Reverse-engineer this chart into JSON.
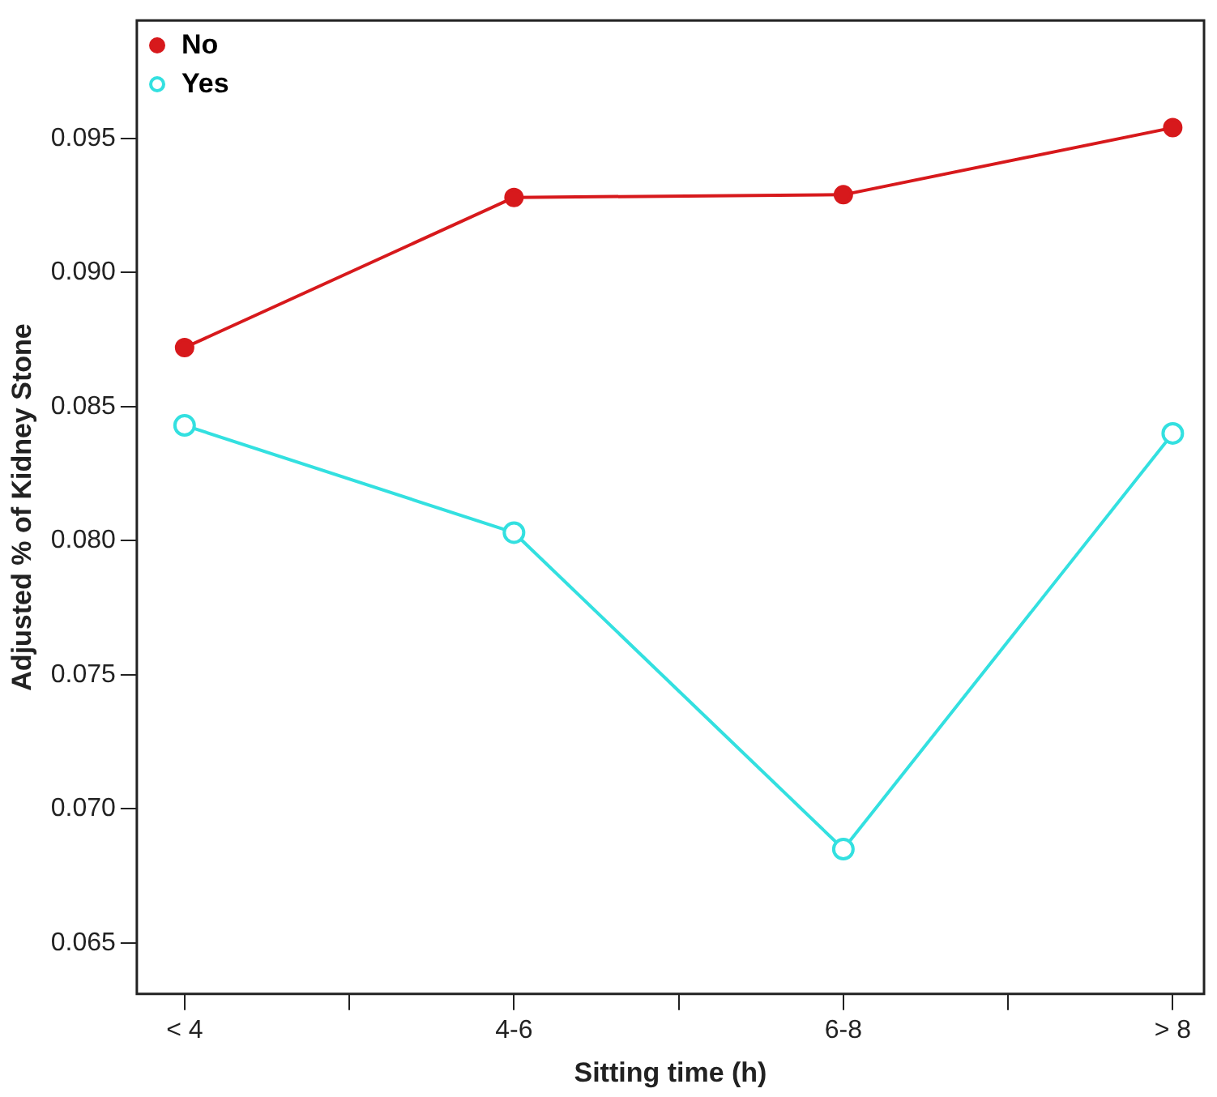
{
  "chart_data": {
    "type": "line",
    "xlabel": "Sitting time (h)",
    "ylabel": "Adjusted % of Kidney Stone",
    "categories": [
      "< 4",
      null,
      "4-6",
      null,
      "6-8",
      null,
      "> 8"
    ],
    "series": [
      {
        "name": "No",
        "color": "#d7191c",
        "values": [
          0.0872,
          null,
          0.0928,
          null,
          0.0929,
          null,
          0.0954
        ],
        "marker": "circle"
      },
      {
        "name": "Yes",
        "color": "#33e0e0",
        "values": [
          0.0843,
          null,
          0.0803,
          null,
          0.0685,
          null,
          0.084
        ],
        "marker": "circle"
      }
    ],
    "ylim": [
      0.0631,
      0.0994
    ],
    "yticks": [
      0.065,
      {
        "value": 0.07,
        "label": "0.070"
      },
      0.075,
      {
        "value": 0.08,
        "label": "0.080"
      },
      0.085,
      {
        "value": 0.09,
        "label": "0.090"
      },
      0.095
    ],
    "grid": false,
    "legend": "top left",
    "line_style": "solid"
  }
}
